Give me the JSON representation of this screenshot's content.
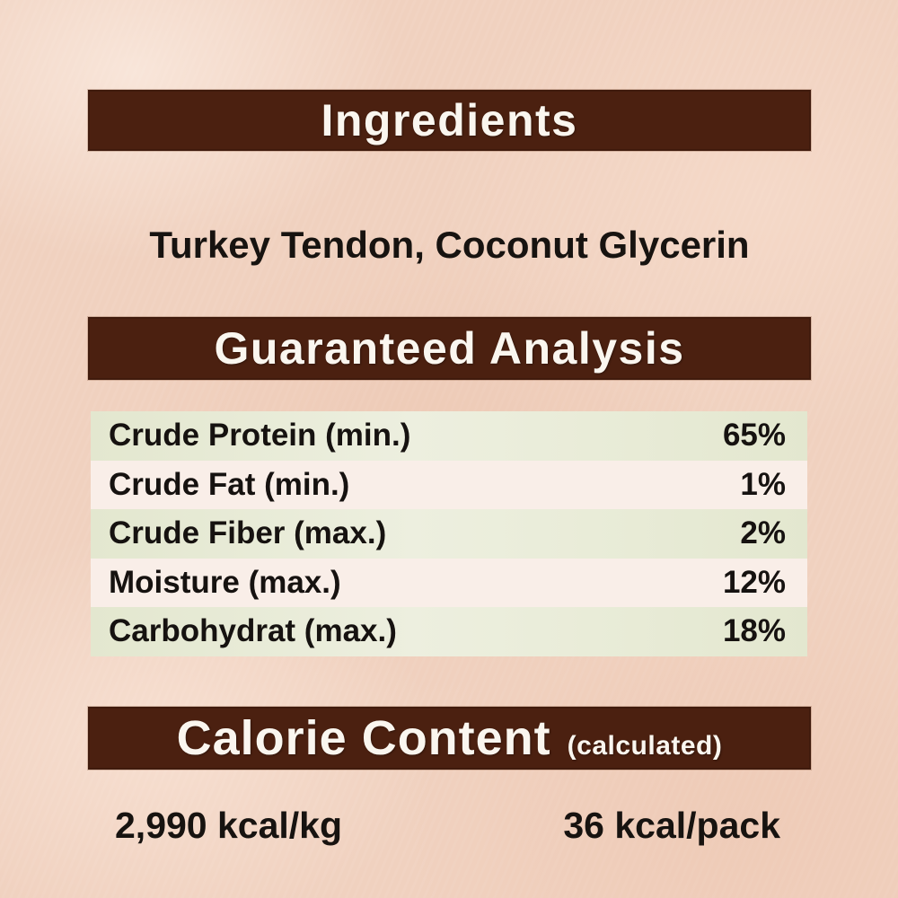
{
  "label": {
    "ingredients_section": {
      "header": "Ingredients",
      "ingredients_list": "Turkey Tendon, Coconut Glycerin"
    },
    "analysis_section": {
      "header": "Guaranteed Analysis",
      "rows": [
        {
          "name": "Crude Protein (min.)",
          "value": "65%"
        },
        {
          "name": "Crude Fat (min.)",
          "value": "1%"
        },
        {
          "name": "Crude Fiber (max.)",
          "value": "2%"
        },
        {
          "name": "Moisture (max.)",
          "value": "12%"
        },
        {
          "name": "Carbohydrat (max.)",
          "value": "18%"
        }
      ]
    },
    "calorie_section": {
      "header": "Calorie Content",
      "header_note": "(calculated)",
      "per_kg": "2,990 kcal/kg",
      "per_pack": "36 kcal/pack"
    },
    "colors": {
      "header_bar": "#4b2010",
      "header_text": "#faf6ef",
      "row_highlight": "#e6e9d4",
      "row_alt": "#f9eee8",
      "body_text": "#171310",
      "background": "#f0d1bf"
    }
  }
}
